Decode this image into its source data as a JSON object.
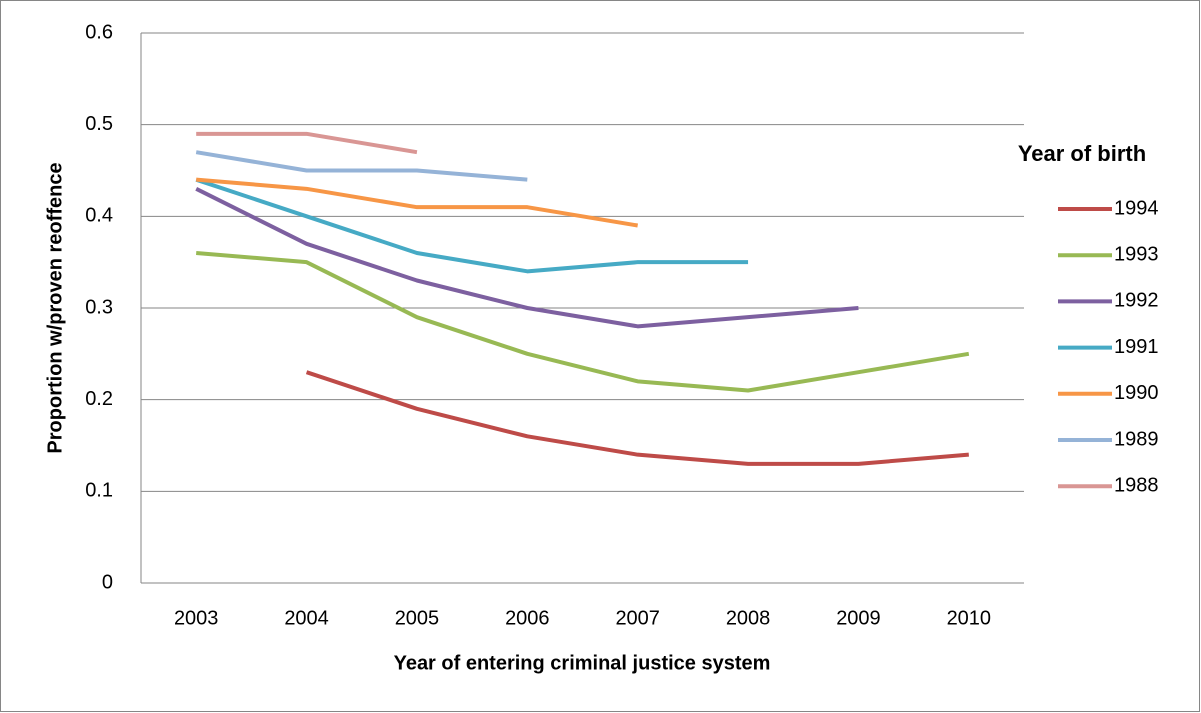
{
  "chart_data": {
    "type": "line",
    "x_label": "Year of entering criminal justice system",
    "y_label": "Proportion w/proven reoffence",
    "legend_title": "Year of birth",
    "legend_position": "right",
    "grid": true,
    "categories": [
      "2003",
      "2004",
      "2005",
      "2006",
      "2007",
      "2008",
      "2009",
      "2010"
    ],
    "ylim": [
      0,
      0.6
    ],
    "yticks": [
      0,
      0.1,
      0.2,
      0.3,
      0.4,
      0.5,
      0.6
    ],
    "series": [
      {
        "name": "1994",
        "color": "#be4b48",
        "values": [
          null,
          0.23,
          0.19,
          0.16,
          0.14,
          0.13,
          0.13,
          0.14
        ]
      },
      {
        "name": "1993",
        "color": "#98b954",
        "values": [
          0.36,
          0.35,
          0.29,
          0.25,
          0.22,
          0.21,
          0.23,
          0.25
        ]
      },
      {
        "name": "1992",
        "color": "#7d60a0",
        "values": [
          0.43,
          0.37,
          0.33,
          0.3,
          0.28,
          0.29,
          0.3,
          null
        ]
      },
      {
        "name": "1991",
        "color": "#46aac5",
        "values": [
          0.44,
          0.4,
          0.36,
          0.34,
          0.35,
          0.35,
          null,
          null
        ]
      },
      {
        "name": "1990",
        "color": "#f79646",
        "values": [
          0.44,
          0.43,
          0.41,
          0.41,
          0.39,
          null,
          null,
          null
        ]
      },
      {
        "name": "1989",
        "color": "#95b3d7",
        "values": [
          0.47,
          0.45,
          0.45,
          0.44,
          null,
          null,
          null,
          null
        ]
      },
      {
        "name": "1988",
        "color": "#d99694",
        "values": [
          0.49,
          0.49,
          0.47,
          null,
          null,
          null,
          null,
          null
        ]
      }
    ]
  }
}
